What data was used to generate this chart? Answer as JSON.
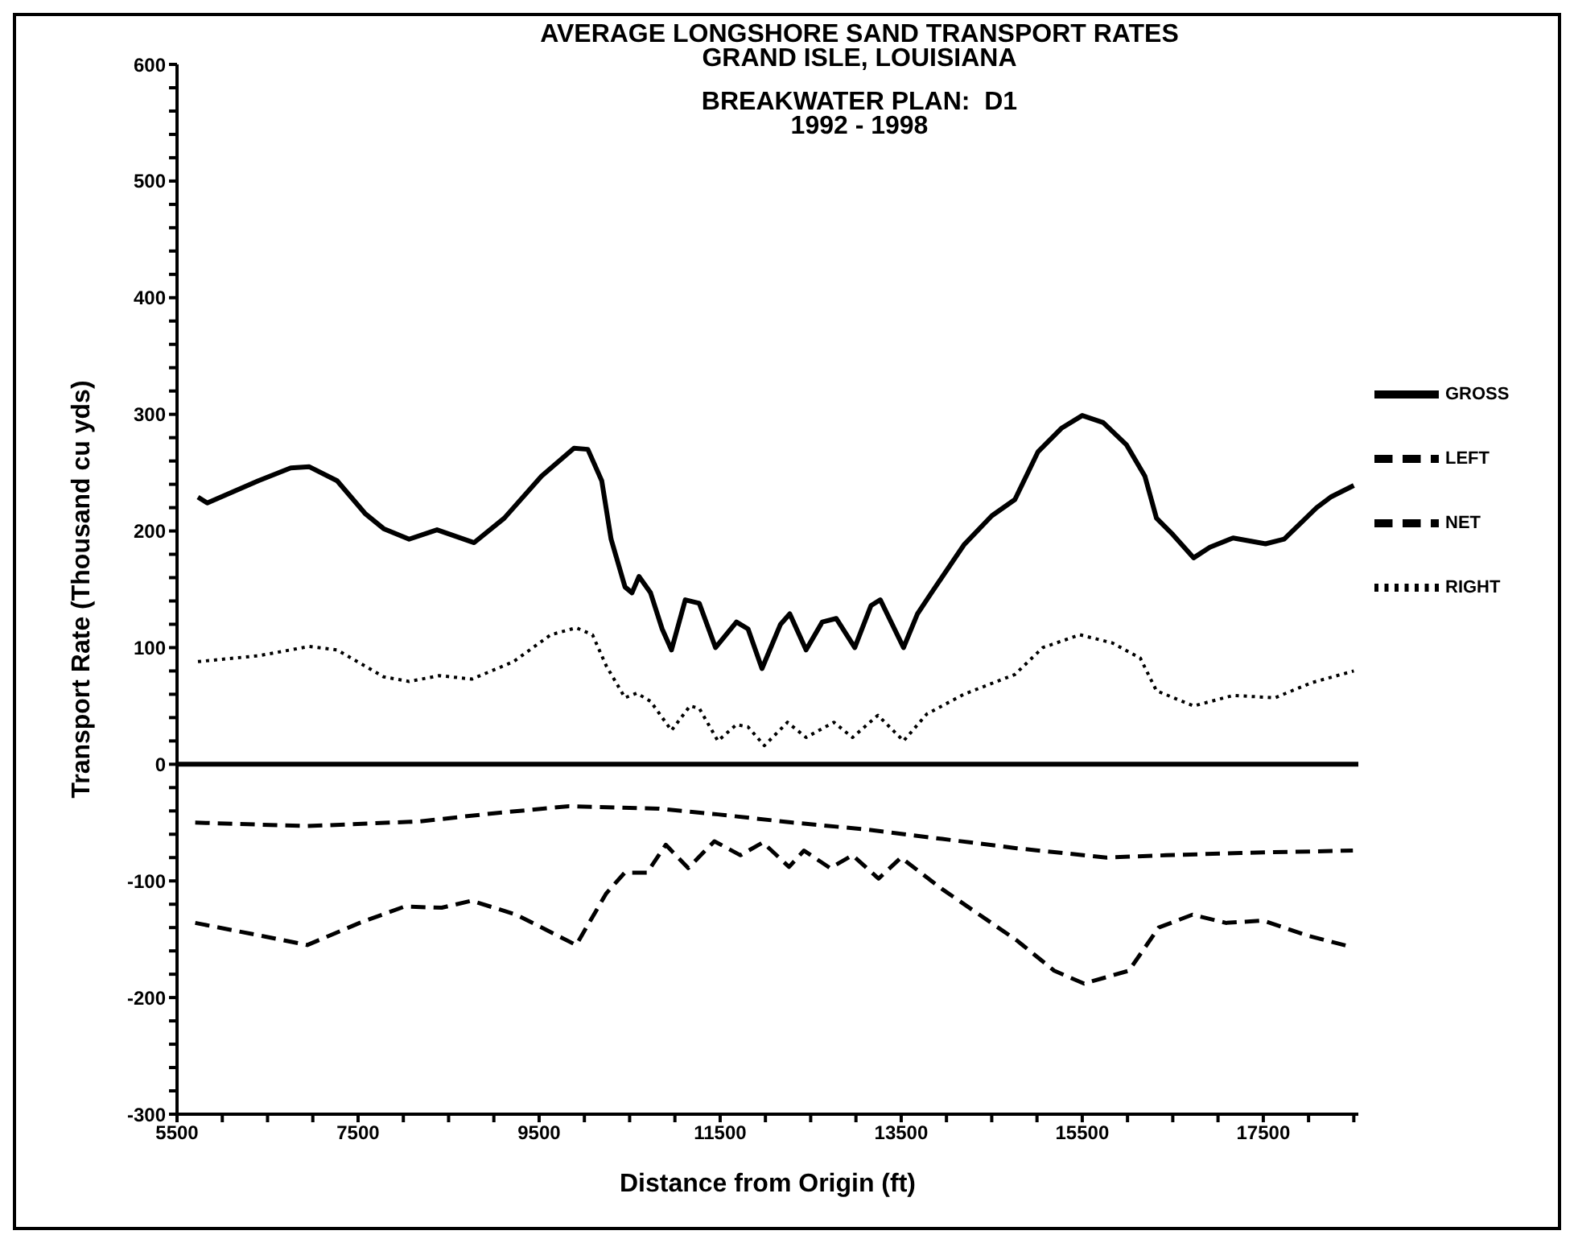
{
  "chart_data": {
    "type": "line",
    "title": "AVERAGE LONGSHORE SAND TRANSPORT RATES\nGRAND ISLE, LOUISIANA",
    "subtitle": "BREAKWATER PLAN:  D1\n1992 - 1998",
    "xlabel": "Distance from Origin (ft)",
    "ylabel": "Transport Rate (Thousand cu yds)",
    "legend": "right",
    "marker": "none",
    "xlim": [
      5500,
      18550
    ],
    "xticks": [
      5500,
      {
        "value": 6000,
        "label": null
      },
      {
        "value": 6500,
        "label": null
      },
      {
        "value": 7000,
        "label": null
      },
      7500,
      {
        "value": 8000,
        "label": null
      },
      {
        "value": 8500,
        "label": null
      },
      {
        "value": 9000,
        "label": null
      },
      9500,
      {
        "value": 10000,
        "label": null
      },
      {
        "value": 10500,
        "label": null
      },
      {
        "value": 11000,
        "label": null
      },
      11500,
      {
        "value": 12000,
        "label": null
      },
      {
        "value": 12500,
        "label": null
      },
      {
        "value": 13000,
        "label": null
      },
      13500,
      {
        "value": 14000,
        "label": null
      },
      {
        "value": 14500,
        "label": null
      },
      {
        "value": 15000,
        "label": null
      },
      15500,
      {
        "value": 16000,
        "label": null
      },
      {
        "value": 16500,
        "label": null
      },
      {
        "value": 17000,
        "label": null
      },
      17500,
      {
        "value": 18000,
        "label": null
      },
      {
        "value": 18500,
        "label": null
      }
    ],
    "ylim": [
      -300,
      600
    ],
    "yticks": [
      -300,
      {
        "value": -280,
        "label": null
      },
      {
        "value": -260,
        "label": null
      },
      {
        "value": -240,
        "label": null
      },
      {
        "value": -220,
        "label": null
      },
      -200,
      {
        "value": -180,
        "label": null
      },
      {
        "value": -160,
        "label": null
      },
      {
        "value": -140,
        "label": null
      },
      {
        "value": -120,
        "label": null
      },
      -100,
      {
        "value": -80,
        "label": null
      },
      {
        "value": -60,
        "label": null
      },
      {
        "value": -40,
        "label": null
      },
      {
        "value": -20,
        "label": null
      },
      0,
      {
        "value": 20,
        "label": null
      },
      {
        "value": 40,
        "label": null
      },
      {
        "value": 60,
        "label": null
      },
      {
        "value": 80,
        "label": null
      },
      100,
      {
        "value": 120,
        "label": null
      },
      {
        "value": 140,
        "label": null
      },
      {
        "value": 160,
        "label": null
      },
      {
        "value": 180,
        "label": null
      },
      200,
      {
        "value": 220,
        "label": null
      },
      {
        "value": 240,
        "label": null
      },
      {
        "value": 260,
        "label": null
      },
      {
        "value": 280,
        "label": null
      },
      300,
      {
        "value": 320,
        "label": null
      },
      {
        "value": 340,
        "label": null
      },
      {
        "value": 360,
        "label": null
      },
      {
        "value": 380,
        "label": null
      },
      400,
      {
        "value": 420,
        "label": null
      },
      {
        "value": 440,
        "label": null
      },
      {
        "value": 460,
        "label": null
      },
      {
        "value": 480,
        "label": null
      },
      500,
      {
        "value": 520,
        "label": null
      },
      {
        "value": 540,
        "label": null
      },
      {
        "value": 560,
        "label": null
      },
      {
        "value": 580,
        "label": null
      },
      600
    ],
    "ref_lines": [
      {
        "axis": "y",
        "value": 0,
        "color": "#000000",
        "line_style": "solid"
      }
    ],
    "series": [
      {
        "name": "GROSS",
        "color": "#000000",
        "line_style": "solid",
        "x": [
          5731,
          5834,
          6397,
          6756,
          6962,
          7269,
          7577,
          7782,
          8064,
          8372,
          8782,
          9115,
          9526,
          9885,
          10038,
          10192,
          10295,
          10449,
          10526,
          10603,
          10731,
          10859,
          10962,
          11115,
          11269,
          11449,
          11680,
          11808,
          11962,
          12167,
          12269,
          12449,
          12628,
          12782,
          12987,
          13166,
          13269,
          13526,
          13680,
          13834,
          14192,
          14500,
          14756,
          15012,
          15269,
          15500,
          15731,
          15987,
          16192,
          16320,
          16500,
          16731,
          16910,
          17166,
          17525,
          17731,
          18089,
          18243,
          18500
        ],
        "values": [
          229,
          224,
          243,
          254,
          255,
          243,
          215,
          202,
          193,
          201,
          190,
          211,
          247,
          271,
          270,
          243,
          193,
          152,
          147,
          161,
          147,
          116,
          98,
          141,
          138,
          100,
          122,
          116,
          82,
          120,
          129,
          98,
          122,
          125,
          100,
          136,
          141,
          100,
          129,
          147,
          188,
          213,
          227,
          268,
          288,
          299,
          293,
          274,
          247,
          211,
          197,
          177,
          186,
          194,
          189,
          193,
          220,
          229,
          239
        ]
      },
      {
        "name": "NET",
        "color": "#000000",
        "line_style": "dashed",
        "x": [
          5701,
          6939,
          8177,
          9002,
          9827,
          10817,
          11477,
          12302,
          13127,
          13952,
          14777,
          15767,
          16427,
          17252,
          18490
        ],
        "values": [
          -50,
          -53,
          -49,
          -42,
          -36,
          -38,
          -43,
          -50,
          -56,
          -64,
          -72,
          -80,
          -78,
          -76,
          -74
        ]
      },
      {
        "name": "LEFT",
        "color": "#000000",
        "line_style": "dashed",
        "x": [
          5701,
          6361,
          6939,
          7517,
          8012,
          8424,
          8754,
          9249,
          9909,
          10239,
          10445,
          10692,
          10899,
          11147,
          11436,
          11724,
          11972,
          12261,
          12426,
          12715,
          12962,
          13250,
          13498,
          13952,
          14777,
          15190,
          15520,
          16015,
          16345,
          16716,
          17087,
          17500,
          17995,
          18490
        ],
        "values": [
          -136,
          -146,
          -155,
          -136,
          -122,
          -123,
          -117,
          -129,
          -155,
          -111,
          -93,
          -93,
          -69,
          -89,
          -66,
          -78,
          -67,
          -88,
          -74,
          -89,
          -78,
          -98,
          -80,
          -107,
          -151,
          -177,
          -188,
          -177,
          -140,
          -129,
          -136,
          -134,
          -147,
          -157
        ]
      },
      {
        "name": "RIGHT",
        "color": "#000000",
        "line_style": "dotted",
        "x": [
          5731,
          6397,
          6962,
          7269,
          7782,
          8064,
          8398,
          8757,
          9218,
          9628,
          9910,
          10090,
          10244,
          10449,
          10577,
          10731,
          10962,
          11167,
          11269,
          11475,
          11680,
          11808,
          11988,
          12244,
          12449,
          12756,
          12962,
          13243,
          13526,
          13782,
          14192,
          14756,
          15064,
          15474,
          15833,
          16141,
          16320,
          16731,
          17166,
          17628,
          18038,
          18500
        ],
        "values": [
          88,
          93,
          101,
          98,
          75,
          71,
          76,
          73,
          88,
          111,
          117,
          111,
          84,
          57,
          61,
          54,
          29,
          50,
          48,
          20,
          34,
          32,
          16,
          36,
          23,
          36,
          23,
          42,
          20,
          43,
          60,
          77,
          100,
          111,
          104,
          91,
          63,
          50,
          59,
          57,
          70,
          80
        ]
      }
    ]
  }
}
